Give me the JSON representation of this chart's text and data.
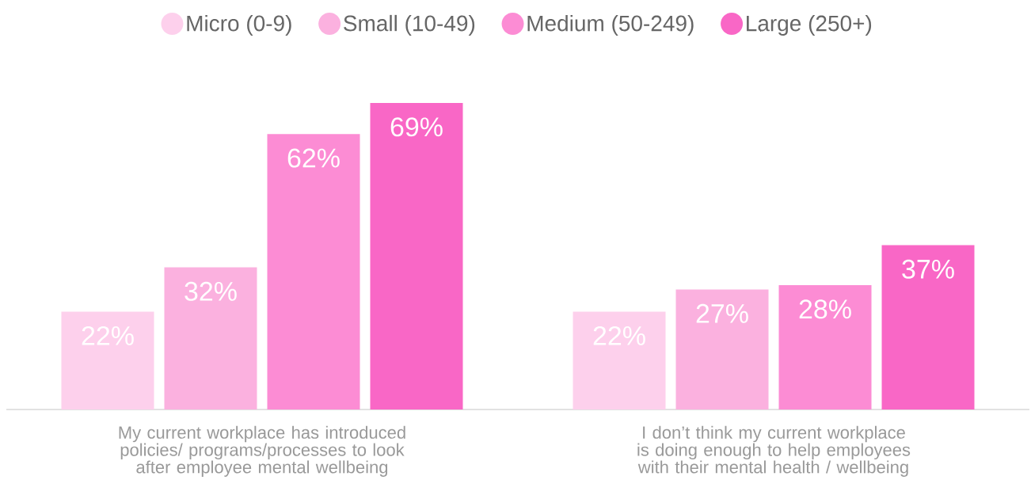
{
  "chart_data": {
    "type": "bar",
    "legend": "top",
    "categories": [
      "My current workplace has introduced policies/ programs/processes to look after employee mental wellbeing",
      "I don’t think my current workplace is doing enough to help employees with their mental health / wellbeing"
    ],
    "series": [
      {
        "name": "Micro (0-9)",
        "color": "#fdd0ec",
        "values": [
          22,
          22
        ],
        "value_labels": [
          "22%",
          "22%"
        ]
      },
      {
        "name": "Small (10-49)",
        "color": "#fbb1df",
        "values": [
          32,
          27
        ],
        "value_labels": [
          "32%",
          "27%"
        ]
      },
      {
        "name": "Medium (50-249)",
        "color": "#fc8cd4",
        "values": [
          62,
          28
        ],
        "value_labels": [
          "62%",
          "28%"
        ]
      },
      {
        "name": "Large (250+)",
        "color": "#f967c6",
        "values": [
          69,
          37
        ],
        "value_labels": [
          "69%",
          "37%"
        ]
      }
    ]
  }
}
